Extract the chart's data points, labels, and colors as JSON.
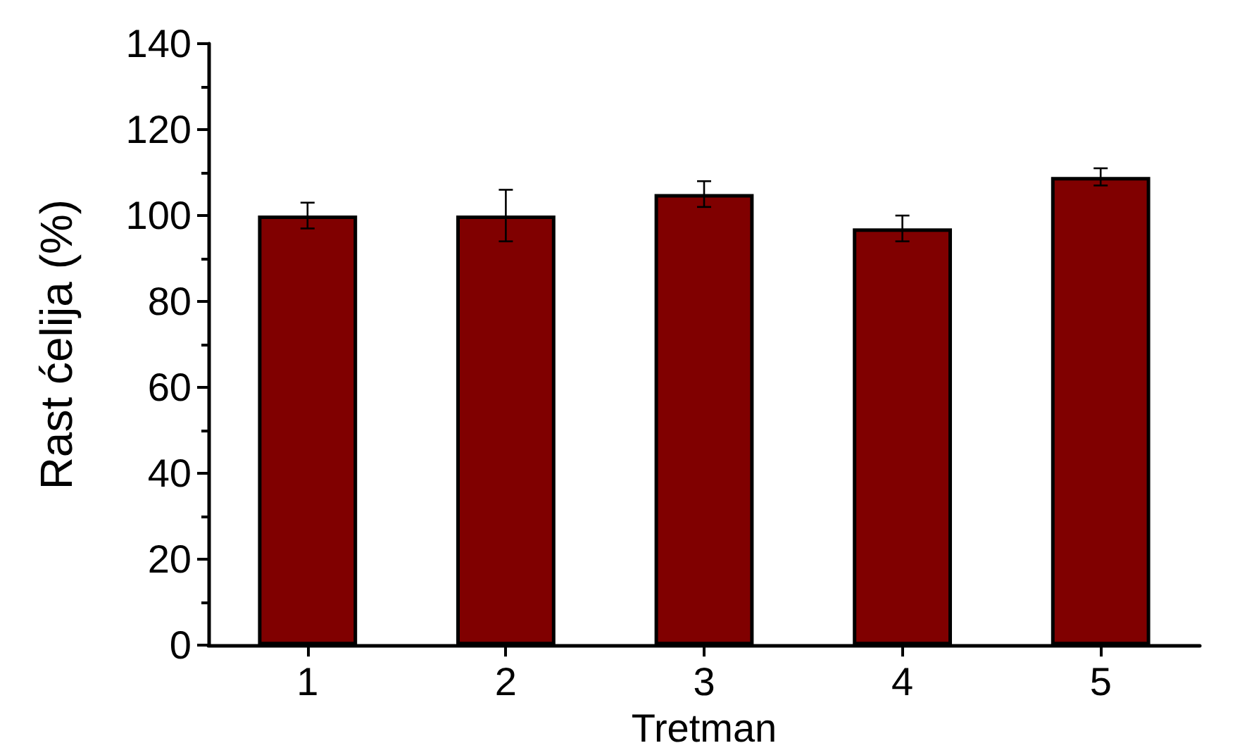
{
  "chart_data": {
    "type": "bar",
    "xlabel": "Tretman",
    "ylabel": "Rast ćelija (%)",
    "categories": [
      "1",
      "2",
      "3",
      "4",
      "5"
    ],
    "values": [
      100,
      100,
      105,
      97,
      109
    ],
    "errors": [
      3,
      6,
      3,
      3,
      2
    ],
    "color": "#800000",
    "ylim": [
      0,
      140
    ],
    "yticks": [
      0,
      20,
      40,
      60,
      80,
      100,
      120,
      140
    ],
    "grid": false
  }
}
